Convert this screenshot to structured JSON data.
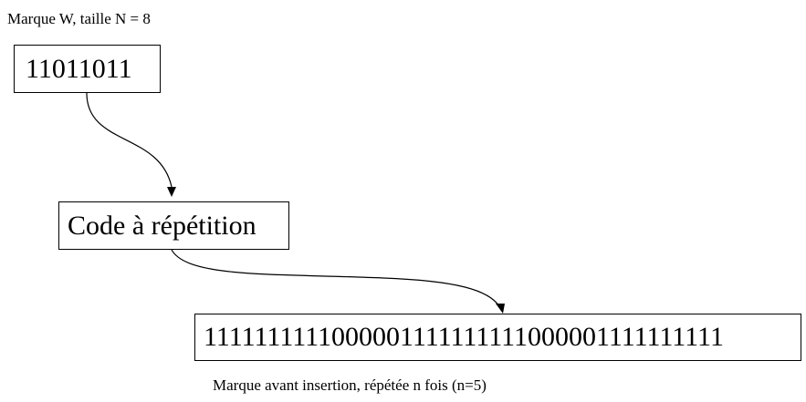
{
  "header_label": "Marque W, taille N = 8",
  "watermark_bits": "11011011",
  "process_label": "Code à répétition",
  "repeated_bits": "1111111111000001111111111000001111111111",
  "footer_label": "Marque avant insertion, répétée n fois (n=5)",
  "colors": {
    "stroke": "#000000",
    "background": "#ffffff"
  }
}
